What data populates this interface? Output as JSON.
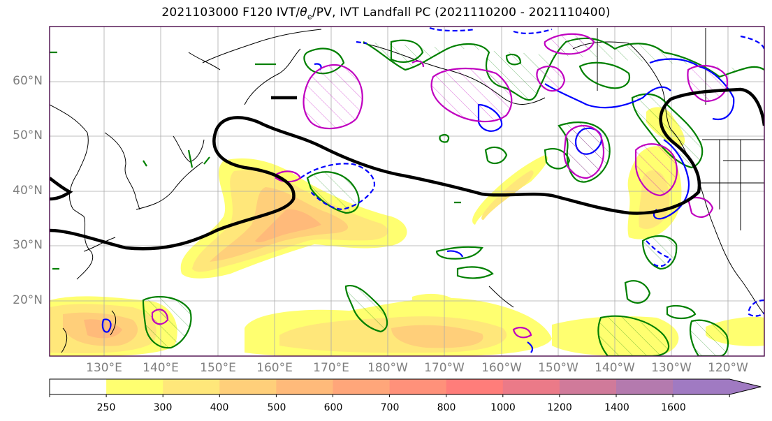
{
  "title_main": "2021103000 F120 IVT/",
  "title_symbol": "θ",
  "title_subscript": "e",
  "title_rest": "/PV, IVT Landfall PC (2021110200 - 2021110400)",
  "lat_labels": [
    "60°N",
    "50°N",
    "40°N",
    "30°N",
    "20°N"
  ],
  "lon_labels": [
    "130°E",
    "140°E",
    "150°E",
    "160°E",
    "170°E",
    "180°W",
    "170°W",
    "160°W",
    "150°W",
    "140°W",
    "130°W",
    "120°W"
  ],
  "colorbar": {
    "levels": [
      "250",
      "300",
      "400",
      "500",
      "600",
      "700",
      "800",
      "1000",
      "1200",
      "1400",
      "1600"
    ],
    "colors": [
      "#ffffff",
      "#ffff70",
      "#ffe77a",
      "#ffcf7a",
      "#ffba7a",
      "#ffa67a",
      "#ff917a",
      "#ff7d7a",
      "#eb7a88",
      "#d07a9a",
      "#b47aae",
      "#a07ac2"
    ]
  },
  "legend_colors": {
    "ivt_fill": "#ffe77a",
    "thick_contour": "#000000",
    "pv_green": "#008000",
    "thetae_blue": "#0000ff",
    "magenta": "#c000c0"
  }
}
